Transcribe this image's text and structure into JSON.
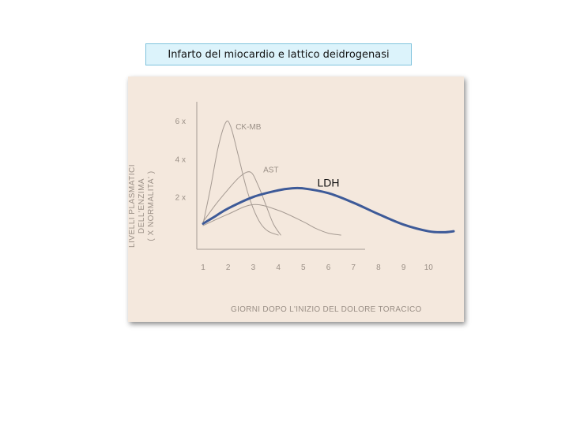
{
  "title": "Infarto del miocardio e lattico deidrogenasi",
  "colors": {
    "panel_background": "#f4e8dd",
    "faint_curve": "#a59a92",
    "ldh_curve": "#3d5a98",
    "title_background": "#dcf3fb",
    "title_border": "#7fc3dd"
  },
  "chart_data": {
    "type": "line",
    "xlabel": "GIORNI DOPO L'INIZIO DEL DOLORE TORACICO",
    "ylabel_line1": "LIVELLI PLASMATICI DELL'ENZIMA",
    "ylabel_line2": "( X NORMALITA' )",
    "x_ticks": [
      "1",
      "2",
      "3",
      "4",
      "5",
      "6",
      "7",
      "8",
      "9",
      "10"
    ],
    "y_ticks": [
      {
        "value": 2,
        "label": "2 x"
      },
      {
        "value": 4,
        "label": "4 x"
      },
      {
        "value": 6,
        "label": "6 x"
      }
    ],
    "xlim": [
      1,
      11
    ],
    "ylim": [
      0,
      6.5
    ],
    "grid": false,
    "series": [
      {
        "name": "CK-MB",
        "style": "faint",
        "x": [
          1,
          1.3,
          1.6,
          1.9,
          2.1,
          2.4,
          2.7,
          3.0,
          3.3,
          3.6,
          4.0
        ],
        "y": [
          0.6,
          2.5,
          4.6,
          5.9,
          5.7,
          4.2,
          2.6,
          1.4,
          0.6,
          0.2,
          0.0
        ]
      },
      {
        "name": "AST",
        "style": "faint",
        "x": [
          1,
          1.5,
          2.0,
          2.5,
          2.9,
          3.2,
          3.5,
          3.8,
          4.1
        ],
        "y": [
          0.7,
          1.6,
          2.4,
          3.1,
          3.3,
          2.6,
          1.6,
          0.6,
          0.0
        ]
      },
      {
        "name": "LDH",
        "style": "faint",
        "x": [
          1,
          2,
          3,
          4,
          5,
          5.5,
          6,
          6.5
        ],
        "y": [
          0.5,
          1.1,
          1.6,
          1.3,
          0.7,
          0.35,
          0.1,
          0.0
        ]
      },
      {
        "name": "LDH",
        "style": "highlight",
        "x": [
          1,
          1.5,
          2,
          3,
          4,
          4.5,
          5,
          6,
          7,
          8,
          9,
          10,
          10.6,
          11
        ],
        "y": [
          0.6,
          1.0,
          1.4,
          2.0,
          2.35,
          2.45,
          2.45,
          2.2,
          1.7,
          1.1,
          0.55,
          0.2,
          0.15,
          0.2
        ]
      }
    ],
    "annotations": [
      {
        "text": "CK-MB",
        "near_series": "CK-MB"
      },
      {
        "text": "AST",
        "near_series": "AST"
      },
      {
        "text": "LDH",
        "near_series": "LDH"
      }
    ]
  }
}
